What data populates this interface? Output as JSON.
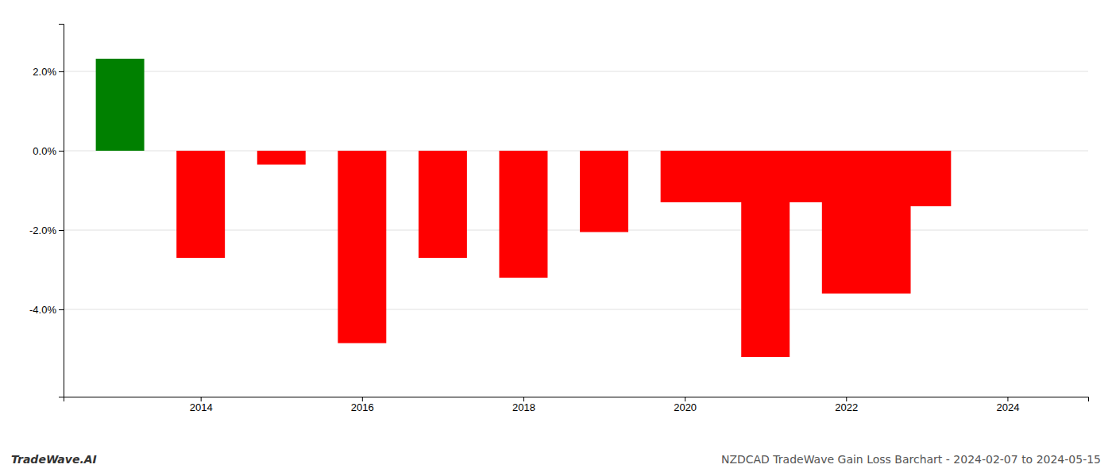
{
  "chart_data": {
    "type": "bar",
    "title": "NZDCAD TradeWave Gain Loss Barchart - 2024-02-07 to 2024-05-15",
    "subtitle": "TradeWave.AI",
    "x": [
      2013,
      2014,
      2015,
      2016,
      2017,
      2018,
      2019,
      2020,
      2020.5,
      2021,
      2021.5,
      2022,
      2022.5,
      2023
    ],
    "values": [
      2.32,
      -2.7,
      -0.35,
      -4.85,
      -2.7,
      -3.2,
      -2.05,
      -1.3,
      -1.3,
      -5.2,
      -1.3,
      -3.6,
      -3.6,
      -1.4
    ],
    "colors": [
      "#008000",
      "#ff0000",
      "#ff0000",
      "#ff0000",
      "#ff0000",
      "#ff0000",
      "#ff0000",
      "#ff0000",
      "#ff0000",
      "#ff0000",
      "#ff0000",
      "#ff0000",
      "#ff0000",
      "#ff0000"
    ],
    "xlim": [
      2012.3,
      2025.0
    ],
    "xticks": [
      2014,
      2016,
      2018,
      2020,
      2022,
      2024
    ],
    "ylim": [
      -6.2,
      3.2
    ],
    "yticks": [
      {
        "value": 2.0,
        "label": "2.0%"
      },
      {
        "value": 0.0,
        "label": "0.0%"
      },
      {
        "value": -2.0,
        "label": "-2.0%"
      },
      {
        "value": -4.0,
        "label": "-4.0%"
      }
    ],
    "grid": true
  }
}
